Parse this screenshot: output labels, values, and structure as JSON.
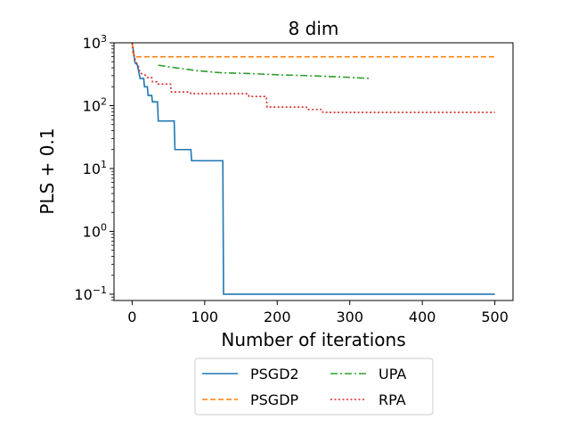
{
  "chart_data": {
    "type": "line",
    "title": "8 dim",
    "xlabel": "Number of iterations",
    "ylabel": "PLS + 0.1",
    "yscale": "log",
    "xlim": [
      -25,
      525
    ],
    "ylim_log10": [
      -1.1,
      3.0
    ],
    "xticks": [
      0,
      100,
      200,
      300,
      400,
      500
    ],
    "xtick_labels": [
      "0",
      "100",
      "200",
      "300",
      "400",
      "500"
    ],
    "yticks_exp": [
      -1,
      0,
      1,
      2,
      3
    ],
    "ytick_base": "10",
    "ytick_exps": [
      "−1",
      "0",
      "1",
      "2",
      "3"
    ],
    "legend": {
      "position": "bottom-center",
      "entries": [
        "PSGD2",
        "UPA",
        "PSGDP",
        "RPA"
      ]
    },
    "series": [
      {
        "name": "PSGD2",
        "color": "#1f77b4",
        "style": "solid",
        "points": [
          [
            0,
            1000
          ],
          [
            2,
            700
          ],
          [
            4,
            480
          ],
          [
            7,
            450
          ],
          [
            9,
            350
          ],
          [
            11,
            270
          ],
          [
            16,
            270
          ],
          [
            17,
            200
          ],
          [
            21,
            200
          ],
          [
            22,
            145
          ],
          [
            27,
            145
          ],
          [
            28,
            115
          ],
          [
            35,
            115
          ],
          [
            36,
            57
          ],
          [
            58,
            57
          ],
          [
            59,
            20
          ],
          [
            81,
            20
          ],
          [
            82,
            13.3
          ],
          [
            125,
            13.3
          ],
          [
            126,
            0.1
          ],
          [
            500,
            0.1
          ]
        ]
      },
      {
        "name": "PSGDP",
        "color": "#ff7f0e",
        "style": "dashed",
        "points": [
          [
            0,
            1000
          ],
          [
            1,
            700
          ],
          [
            3,
            600
          ],
          [
            500,
            600
          ]
        ]
      },
      {
        "name": "UPA",
        "color": "#2ca02c",
        "style": "dashdot",
        "points": [
          [
            36,
            440
          ],
          [
            60,
            400
          ],
          [
            90,
            360
          ],
          [
            120,
            335
          ],
          [
            160,
            325
          ],
          [
            200,
            310
          ],
          [
            250,
            298
          ],
          [
            300,
            282
          ],
          [
            330,
            270
          ]
        ]
      },
      {
        "name": "RPA",
        "color": "#d62728",
        "style": "dotted",
        "points": [
          [
            0,
            1000
          ],
          [
            3,
            600
          ],
          [
            5,
            500
          ],
          [
            7,
            460
          ],
          [
            9,
            410
          ],
          [
            11,
            330
          ],
          [
            20,
            300
          ],
          [
            21,
            280
          ],
          [
            27,
            280
          ],
          [
            28,
            240
          ],
          [
            34,
            240
          ],
          [
            35,
            220
          ],
          [
            53,
            220
          ],
          [
            54,
            165
          ],
          [
            80,
            165
          ],
          [
            81,
            155
          ],
          [
            160,
            155
          ],
          [
            161,
            140
          ],
          [
            185,
            140
          ],
          [
            186,
            95
          ],
          [
            240,
            95
          ],
          [
            241,
            87
          ],
          [
            262,
            87
          ],
          [
            263,
            78
          ],
          [
            500,
            78
          ]
        ]
      }
    ]
  }
}
